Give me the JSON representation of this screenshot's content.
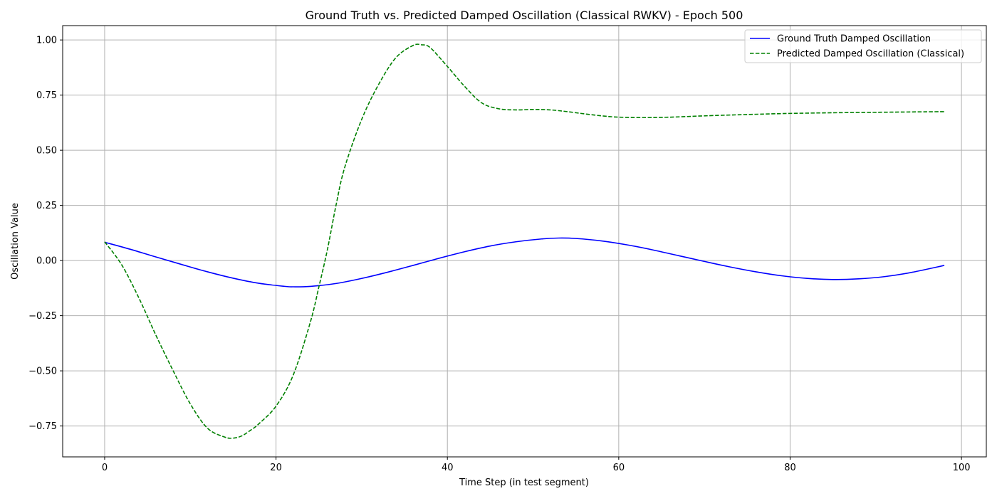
{
  "chart_data": {
    "type": "line",
    "title": "Ground Truth vs. Predicted Damped Oscillation (Classical RWKV) - Epoch 500",
    "xlabel": "Time Step (in test segment)",
    "ylabel": "Oscillation Value",
    "xlim": [
      -4.9,
      102.9
    ],
    "ylim": [
      -0.89,
      1.065
    ],
    "xticks": [
      0,
      20,
      40,
      60,
      80,
      100
    ],
    "xtick_labels": [
      "0",
      "20",
      "40",
      "60",
      "80",
      "100"
    ],
    "yticks": [
      -0.75,
      -0.5,
      -0.25,
      0.0,
      0.25,
      0.5,
      0.75,
      1.0
    ],
    "ytick_labels": [
      "−0.75",
      "−0.50",
      "−0.25",
      "0.00",
      "0.25",
      "0.50",
      "0.75",
      "1.00"
    ],
    "grid": true,
    "legend_position": "top-right",
    "series": [
      {
        "name": "Ground Truth Damped Oscillation",
        "color": "#0000ff",
        "style": "solid",
        "x": [
          0,
          3,
          6,
          9,
          12,
          15,
          18,
          21,
          22,
          24,
          27,
          30,
          33,
          36,
          39,
          42,
          45,
          48,
          51,
          53,
          55,
          58,
          61,
          64,
          67,
          70,
          73,
          76,
          79,
          82,
          85,
          88,
          91,
          94,
          98
        ],
        "y": [
          0.083,
          0.051,
          0.016,
          -0.018,
          -0.051,
          -0.08,
          -0.103,
          -0.117,
          -0.119,
          -0.117,
          -0.104,
          -0.081,
          -0.053,
          -0.022,
          0.01,
          0.04,
          0.066,
          0.085,
          0.098,
          0.102,
          0.1,
          0.089,
          0.071,
          0.048,
          0.022,
          -0.004,
          -0.029,
          -0.051,
          -0.069,
          -0.081,
          -0.086,
          -0.083,
          -0.073,
          -0.055,
          -0.022
        ]
      },
      {
        "name": "Predicted Damped Oscillation (Classical)",
        "color": "#008000",
        "style": "dashed",
        "x": [
          0,
          2,
          4,
          6,
          8,
          10,
          12,
          14,
          15,
          16,
          17,
          18,
          20,
          22,
          24,
          25,
          26,
          27,
          28,
          30,
          32,
          34,
          36,
          37,
          38,
          40,
          42,
          44,
          46,
          48,
          50,
          52,
          54,
          56,
          58,
          60,
          63,
          66,
          70,
          75,
          80,
          85,
          90,
          95,
          98
        ],
        "y": [
          0.085,
          -0.02,
          -0.17,
          -0.34,
          -0.5,
          -0.65,
          -0.76,
          -0.8,
          -0.805,
          -0.795,
          -0.77,
          -0.74,
          -0.66,
          -0.52,
          -0.28,
          -0.12,
          0.05,
          0.25,
          0.42,
          0.64,
          0.8,
          0.92,
          0.975,
          0.978,
          0.965,
          0.88,
          0.79,
          0.715,
          0.688,
          0.683,
          0.685,
          0.683,
          0.675,
          0.665,
          0.656,
          0.65,
          0.648,
          0.65,
          0.656,
          0.662,
          0.667,
          0.67,
          0.672,
          0.674,
          0.675
        ]
      }
    ]
  }
}
